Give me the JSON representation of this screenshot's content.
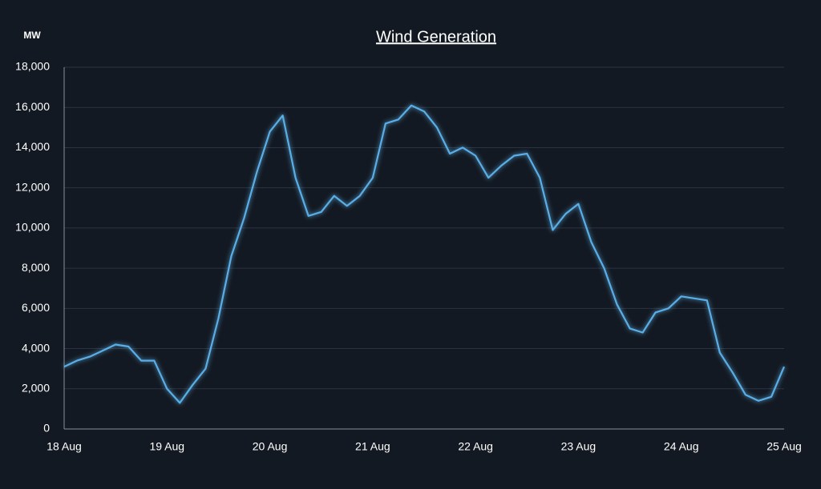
{
  "chart_data": {
    "type": "line",
    "title": "Wind Generation",
    "y_label": "MW",
    "categories": [
      "18 Aug",
      null,
      null,
      null,
      null,
      null,
      null,
      null,
      "19 Aug",
      null,
      null,
      null,
      null,
      null,
      null,
      null,
      "20 Aug",
      null,
      null,
      null,
      null,
      null,
      null,
      null,
      "21 Aug",
      null,
      null,
      null,
      null,
      null,
      null,
      null,
      "22 Aug",
      null,
      null,
      null,
      null,
      null,
      null,
      null,
      "23 Aug",
      null,
      null,
      null,
      null,
      null,
      null,
      null,
      "24 Aug",
      null,
      null,
      null,
      null,
      null,
      null,
      null,
      "25 Aug"
    ],
    "series": [
      {
        "name": "Wind Generation",
        "color": "#5aaee6",
        "values": [
          3100,
          3400,
          3600,
          3900,
          4200,
          4100,
          3400,
          3400,
          2000,
          1300,
          2200,
          3000,
          5500,
          8600,
          10500,
          12800,
          14800,
          15600,
          12500,
          10600,
          10800,
          11600,
          11100,
          11600,
          12500,
          15200,
          15400,
          16100,
          15800,
          15000,
          13700,
          14000,
          13600,
          12500,
          13100,
          13600,
          13700,
          12500,
          9900,
          10700,
          11200,
          9300,
          8000,
          6200,
          5000,
          4800,
          5800,
          6000,
          6600,
          6500,
          6400,
          3800,
          2800,
          1700,
          1400,
          1600,
          3100
        ]
      }
    ],
    "ylim": [
      0,
      18000
    ],
    "yticks": [
      0,
      {
        "value": 2000,
        "label": "2,000"
      },
      {
        "value": 4000,
        "label": "4,000"
      },
      {
        "value": 6000,
        "label": "6,000"
      },
      {
        "value": 8000,
        "label": "8,000"
      },
      {
        "value": 10000,
        "label": "10,000"
      },
      {
        "value": 12000,
        "label": "12,000"
      },
      {
        "value": 14000,
        "label": "14,000"
      },
      {
        "value": 16000,
        "label": "16,000"
      },
      {
        "value": 18000,
        "label": "18,000"
      }
    ],
    "grid": true
  }
}
